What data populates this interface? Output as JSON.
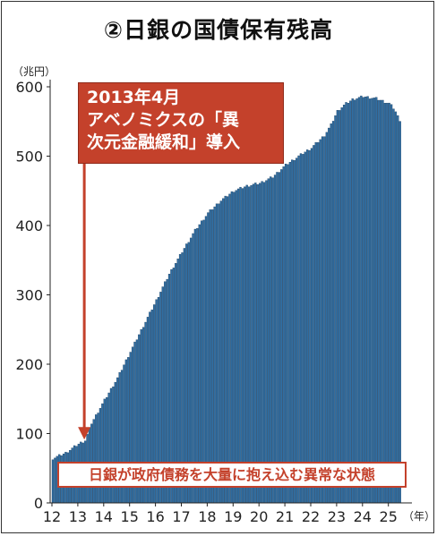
{
  "title": "②日銀の国債保有残高",
  "unit_label": "（兆円）",
  "callout": {
    "line1": "2013年4月",
    "line2": "アベノミクスの「異",
    "line3": "次元金融緩和」導入"
  },
  "banner": "日銀が政府債務を大量に抱え込む異常な状態",
  "colors": {
    "bar": "#2f6ea3",
    "bar_edge": "#173a5c",
    "accent": "#c4412b"
  },
  "chart_data": {
    "type": "bar",
    "title": "②日銀の国債保有残高",
    "ylabel": "（兆円）",
    "xlabel": "（年）",
    "ylim": [
      0,
      600
    ],
    "yticks": [
      0,
      100,
      200,
      300,
      400,
      500,
      600
    ],
    "xticks": [
      "12",
      "13",
      "14",
      "15",
      "16",
      "17",
      "18",
      "19",
      "20",
      "21",
      "22",
      "23",
      "24",
      "25"
    ],
    "x_start": 2012,
    "x_end": 2025.5,
    "annotation": {
      "x": 2013.25,
      "label": "2013年4月 アベノミクスの「異次元金融緩和」導入"
    },
    "anchors": [
      [
        2012.0,
        64
      ],
      [
        2012.5,
        72
      ],
      [
        2012.8,
        80
      ],
      [
        2013.0,
        85
      ],
      [
        2013.25,
        90
      ],
      [
        2013.5,
        115
      ],
      [
        2014.0,
        148
      ],
      [
        2014.5,
        180
      ],
      [
        2015.0,
        218
      ],
      [
        2015.5,
        255
      ],
      [
        2016.0,
        292
      ],
      [
        2016.5,
        330
      ],
      [
        2017.0,
        362
      ],
      [
        2017.5,
        393
      ],
      [
        2018.0,
        418
      ],
      [
        2018.5,
        436
      ],
      [
        2019.0,
        450
      ],
      [
        2019.5,
        457
      ],
      [
        2020.0,
        461
      ],
      [
        2020.5,
        470
      ],
      [
        2021.0,
        487
      ],
      [
        2021.5,
        500
      ],
      [
        2022.0,
        512
      ],
      [
        2022.5,
        530
      ],
      [
        2022.75,
        545
      ],
      [
        2023.0,
        565
      ],
      [
        2023.3,
        575
      ],
      [
        2023.6,
        582
      ],
      [
        2024.0,
        586
      ],
      [
        2024.5,
        583
      ],
      [
        2025.0,
        576
      ],
      [
        2025.2,
        568
      ],
      [
        2025.4,
        552
      ]
    ]
  }
}
